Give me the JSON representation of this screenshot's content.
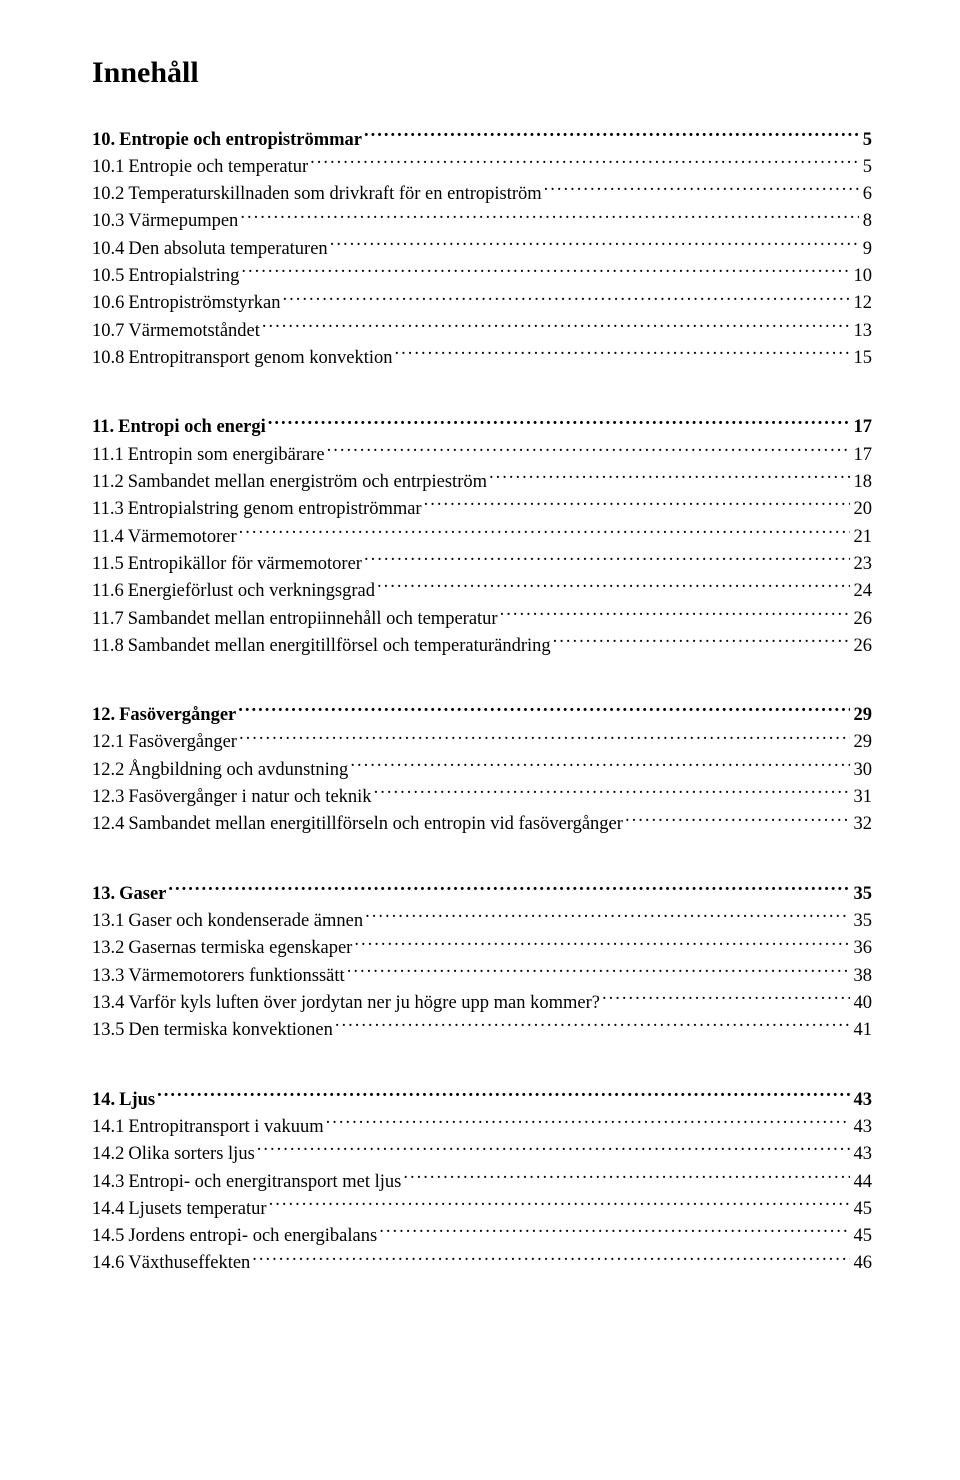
{
  "title": "Innehåll",
  "sections": [
    {
      "heading_num": "10.",
      "heading_txt": "Entropie och entropiströmmar",
      "heading_pg": "5",
      "items": [
        {
          "num": "10.1",
          "txt": "Entropie och temperatur",
          "pg": "5"
        },
        {
          "num": "10.2",
          "txt": "Temperaturskillnaden som drivkraft för en entropiström",
          "pg": "6"
        },
        {
          "num": "10.3",
          "txt": "Värmepumpen",
          "pg": "8"
        },
        {
          "num": "10.4",
          "txt": "Den absoluta temperaturen",
          "pg": "9"
        },
        {
          "num": "10.5",
          "txt": "Entropialstring",
          "pg": "10"
        },
        {
          "num": "10.6",
          "txt": "Entropiströmstyrkan",
          "pg": "12"
        },
        {
          "num": "10.7",
          "txt": "Värmemotståndet",
          "pg": "13"
        },
        {
          "num": "10.8",
          "txt": "Entropitransport genom konvektion",
          "pg": "15"
        }
      ]
    },
    {
      "heading_num": "11.",
      "heading_txt": "Entropi och energi",
      "heading_pg": "17",
      "items": [
        {
          "num": "11.1",
          "txt": "Entropin som energibärare",
          "pg": "17"
        },
        {
          "num": "11.2",
          "txt": "Sambandet mellan energiström och entrpieström",
          "pg": "18"
        },
        {
          "num": "11.3",
          "txt": "Entropialstring genom entropiströmmar",
          "pg": "20"
        },
        {
          "num": "11.4",
          "txt": "Värmemotorer",
          "pg": "21"
        },
        {
          "num": "11.5",
          "txt": "Entropikällor för värmemotorer",
          "pg": "23"
        },
        {
          "num": "11.6",
          "txt": "Energieförlust och verkningsgrad",
          "pg": "24"
        },
        {
          "num": "11.7",
          "txt": "Sambandet mellan entropiinnehåll och temperatur",
          "pg": "26"
        },
        {
          "num": "11.8",
          "txt": "Sambandet mellan energitillförsel och temperaturändring",
          "pg": "26"
        }
      ]
    },
    {
      "heading_num": "12.",
      "heading_txt": "Fasövergånger",
      "heading_pg": "29",
      "items": [
        {
          "num": "12.1",
          "txt": "Fasövergånger",
          "pg": "29"
        },
        {
          "num": "12.2",
          "txt": "Ångbildning och avdunstning",
          "pg": "30"
        },
        {
          "num": "12.3",
          "txt": "Fasövergånger i natur och teknik",
          "pg": "31"
        },
        {
          "num": "12.4",
          "txt": "Sambandet mellan energitillförseln och entropin vid fasövergånger",
          "pg": "32"
        }
      ]
    },
    {
      "heading_num": "13.",
      "heading_txt": "Gaser ",
      "heading_pg": "35",
      "items": [
        {
          "num": "13.1",
          "txt": "Gaser och kondenserade ämnen",
          "pg": "35"
        },
        {
          "num": "13.2",
          "txt": "Gasernas termiska egenskaper",
          "pg": "36"
        },
        {
          "num": "13.3",
          "txt": "Värmemotorers funktionssätt",
          "pg": "38"
        },
        {
          "num": "13.4",
          "txt": "Varför kyls luften över jordytan ner ju högre upp man kommer?",
          "pg": "40"
        },
        {
          "num": "13.5",
          "txt": "Den termiska konvektionen",
          "pg": "41"
        }
      ]
    },
    {
      "heading_num": "14.",
      "heading_txt": "Ljus  ",
      "heading_pg": "43",
      "items": [
        {
          "num": "14.1",
          "txt": "Entropitransport i vakuum",
          "pg": "43"
        },
        {
          "num": "14.2",
          "txt": "Olika sorters ljus",
          "pg": "43"
        },
        {
          "num": "14.3",
          "txt": "Entropi- och energitransport met ljus",
          "pg": "44"
        },
        {
          "num": "14.4",
          "txt": "Ljusets temperatur",
          "pg": "45"
        },
        {
          "num": "14.5",
          "txt": "Jordens entropi- och energibalans",
          "pg": "45"
        },
        {
          "num": "14.6",
          "txt": "Växthuseffekten",
          "pg": "46"
        }
      ]
    }
  ]
}
